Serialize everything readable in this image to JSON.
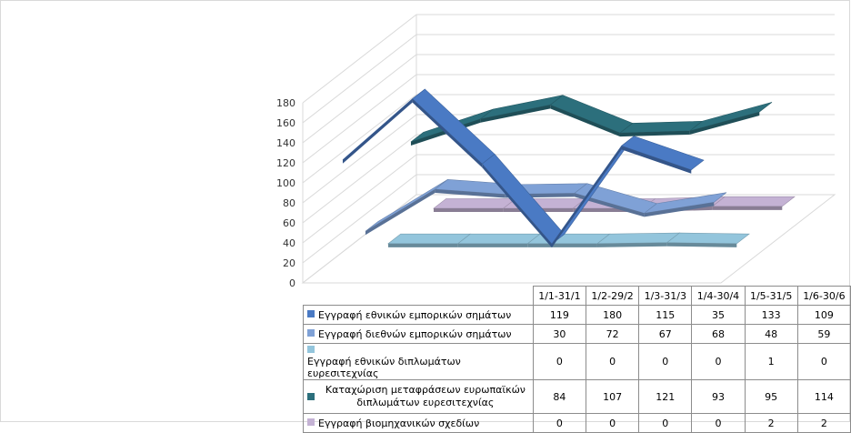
{
  "chart_data": {
    "type": "line",
    "title": "",
    "categories": [
      "1/1-31/1",
      "1/2-29/2",
      "1/3-31/3",
      "1/4-30/4",
      "1/5-31/5",
      "1/6-30/6"
    ],
    "y_ticks": [
      "0",
      "20",
      "40",
      "60",
      "80",
      "100",
      "120",
      "140",
      "160",
      "180"
    ],
    "ylim": [
      0,
      180
    ],
    "grid": true,
    "legend": "table-bottom",
    "series": [
      {
        "name": "Εγγραφή εθνικών εμπορικών σημάτων",
        "values": [
          119,
          180,
          115,
          35,
          133,
          109
        ],
        "color": "#4a7ac4"
      },
      {
        "name": "Εγγραφή διεθνών εμπορικών σημάτων",
        "values": [
          30,
          72,
          67,
          68,
          48,
          59
        ],
        "color": "#7fa1d6"
      },
      {
        "name": "Εγγραφή εθνικών διπλωμάτων ευρεσιτεχνίας",
        "values": [
          0,
          0,
          0,
          0,
          1,
          0
        ],
        "color": "#93c5dc"
      },
      {
        "name": "Καταχώριση μεταφράσεων ευρωπαϊκών διπλωμάτων ευρεσιτεχνίας",
        "values": [
          84,
          107,
          121,
          93,
          95,
          114
        ],
        "color": "#2c6f7c"
      },
      {
        "name": "Εγγραφή βιομηχανικών σχεδίων",
        "values": [
          0,
          0,
          0,
          0,
          2,
          2
        ],
        "color": "#c4b2d4"
      }
    ]
  }
}
